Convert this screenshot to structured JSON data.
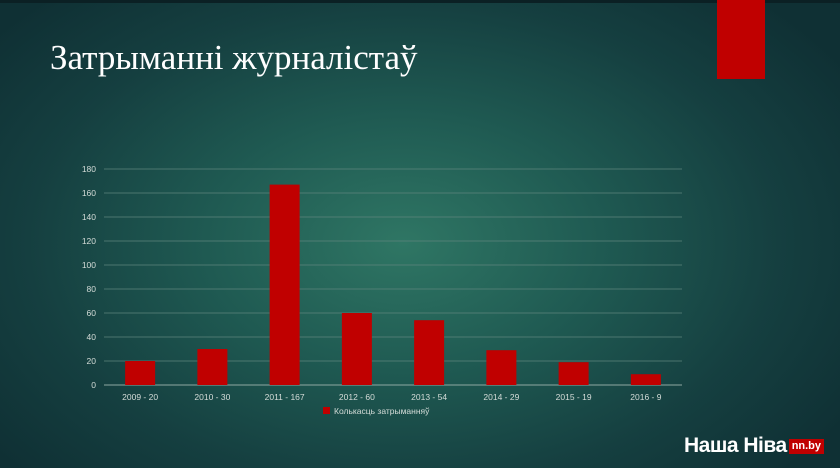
{
  "slide": {
    "title": "Затрыманні журналістаў",
    "accent_color": "#c00000"
  },
  "logo": {
    "name": "Наша Ніва",
    "domain": "nn.by"
  },
  "chart_data": {
    "type": "bar",
    "categories": [
      "2009 - 20",
      "2010 - 30",
      "2011 - 167",
      "2012 - 60",
      "2013 - 54",
      "2014 - 29",
      "2015 - 19",
      "2016 - 9"
    ],
    "series": [
      {
        "name": "Колькасць затрыманняў",
        "values": [
          20,
          30,
          167,
          60,
          54,
          29,
          19,
          9
        ],
        "color": "#c00000"
      }
    ],
    "ylim": [
      0,
      180
    ],
    "yticks": [
      0,
      20,
      40,
      60,
      80,
      100,
      120,
      140,
      160,
      180
    ],
    "grid": true,
    "legend": "bottom"
  }
}
